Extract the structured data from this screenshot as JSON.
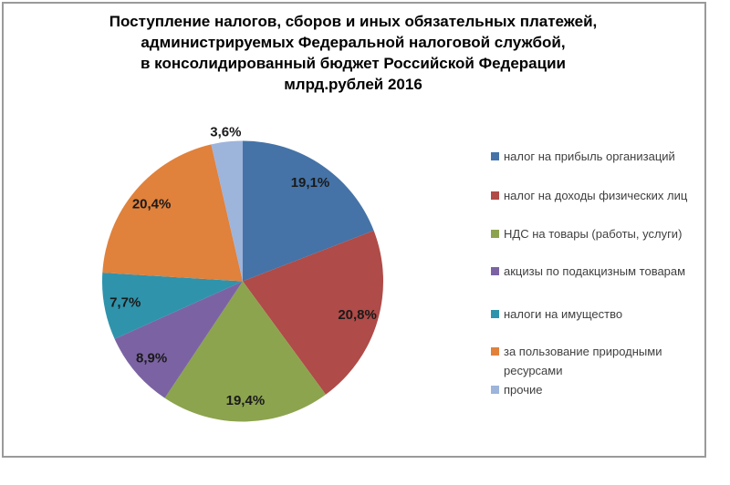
{
  "chart_data": {
    "type": "pie",
    "title": "Поступление налогов, сборов и иных обязательных платежей, администрируемых Федеральной налоговой службой, в консолидированный бюджет Российской Федерации млрд.рублей 2016",
    "title_lines": [
      "Поступление налогов, сборов и иных обязательных платежей,",
      "администрируемых Федеральной налоговой службой,",
      "в консолидированный бюджет Российской Федерации",
      "млрд.рублей 2016"
    ],
    "legend_position": "right",
    "label_format": "percent with comma decimal separator",
    "slices": [
      {
        "label": "налог на прибыль организаций",
        "value": 19.1,
        "display": "19,1%",
        "color": "#4573A7"
      },
      {
        "label": "налог на доходы физических лиц",
        "value": 20.8,
        "display": "20,8%",
        "color": "#AF4B48"
      },
      {
        "label": "НДС на товары (работы, услуги)",
        "value": 19.4,
        "display": "19,4%",
        "color": "#8CA44E"
      },
      {
        "label": "акцизы по подакцизным товарам",
        "value": 8.9,
        "display": "8,9%",
        "color": "#7B63A3"
      },
      {
        "label": "налоги на имущество",
        "value": 7.7,
        "display": "7,7%",
        "color": "#2F93AC"
      },
      {
        "label": "за пользование природными ресурсами",
        "value": 20.4,
        "display": "20,4%",
        "color": "#E0813C"
      },
      {
        "label": "прочие",
        "value": 3.6,
        "display": "3,6%",
        "color": "#9DB4DB"
      }
    ]
  }
}
